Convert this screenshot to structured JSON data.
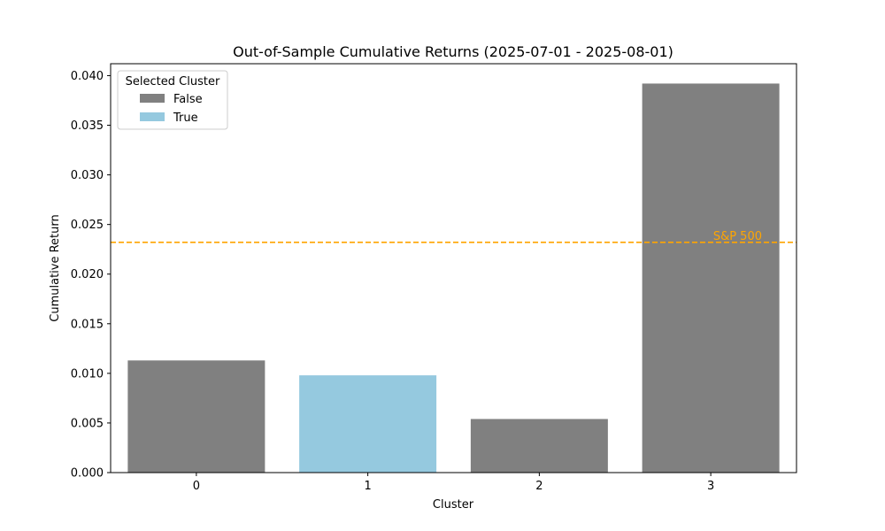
{
  "chart_data": {
    "type": "bar",
    "title": "Out-of-Sample Cumulative Returns (2025-07-01 - 2025-08-01)",
    "xlabel": "Cluster",
    "ylabel": "Cumulative Return",
    "categories": [
      "0",
      "1",
      "2",
      "3"
    ],
    "values": [
      0.0113,
      0.0098,
      0.0054,
      0.0392
    ],
    "selected": [
      false,
      true,
      false,
      false
    ],
    "ylim": [
      0,
      0.0412
    ],
    "yticks": [
      "0.000",
      "0.005",
      "0.010",
      "0.015",
      "0.020",
      "0.025",
      "0.030",
      "0.035",
      "0.040"
    ],
    "grid": false,
    "legend": {
      "title": "Selected Cluster",
      "placement": "top-left",
      "entries": [
        {
          "label": "False",
          "color": "#808080"
        },
        {
          "label": "True",
          "color": "#95c9df"
        }
      ]
    },
    "reference_line": {
      "label": "S&P 500",
      "value": 0.0232,
      "color": "#ffa500",
      "style": "dashed"
    },
    "colors": {
      "false": "#808080",
      "true": "#95c9df"
    }
  }
}
